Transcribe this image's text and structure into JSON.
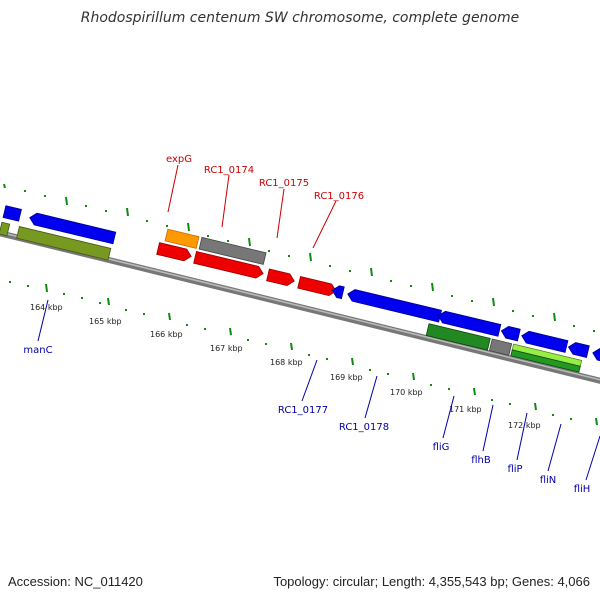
{
  "title": "Rhodospirillum centenum SW chromosome, complete genome",
  "footer": {
    "accession": "Accession: NC_011420",
    "topology": "Topology: circular; Length: 4,355,543 bp; Genes: 4,066"
  },
  "colors": {
    "backbone": "#888888",
    "ticks": "#118811",
    "forward_cds": "#ee0000",
    "reverse_cds": "#0000ee",
    "rrna_like": "#ff9900",
    "pseudo": "#777777",
    "olive": "#779922",
    "dark_green": "#228822",
    "light_green": "#99ee44",
    "label_forward": "#cc0000",
    "label_reverse": "#0000aa"
  },
  "scale_labels": [
    "164 kbp",
    "165 kbp",
    "166 kbp",
    "167 kbp",
    "168 kbp",
    "169 kbp",
    "170 kbp",
    "171 kbp",
    "172 kbp"
  ],
  "top_labels": [
    "expG",
    "RC1_0174",
    "RC1_0175",
    "RC1_0176"
  ],
  "bottom_labels": [
    "manC",
    "RC1_0177",
    "RC1_0178",
    "fliG",
    "flhB",
    "fliP",
    "fliN",
    "fliH"
  ]
}
